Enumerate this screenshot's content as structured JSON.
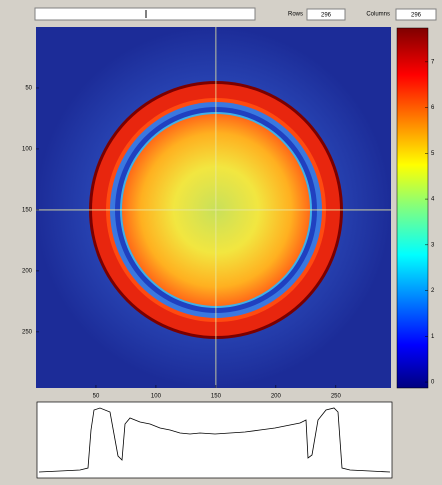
{
  "toolbar": {
    "rows_label": "Rows",
    "rows_value": "296",
    "columns_label": "Columns",
    "columns_value": "296"
  },
  "image": {
    "xlim": [
      0,
      296
    ],
    "ylim": [
      0,
      296
    ],
    "xticks": [
      50,
      100,
      150,
      200,
      250
    ],
    "yticks": [
      50,
      100,
      150,
      200,
      250
    ],
    "crosshair": {
      "x": 150,
      "y": 150
    }
  },
  "colorbar": {
    "lim": [
      -0.13,
      7.74
    ],
    "ticks": [
      0,
      1,
      2,
      3,
      4,
      5,
      6,
      7
    ]
  }
}
